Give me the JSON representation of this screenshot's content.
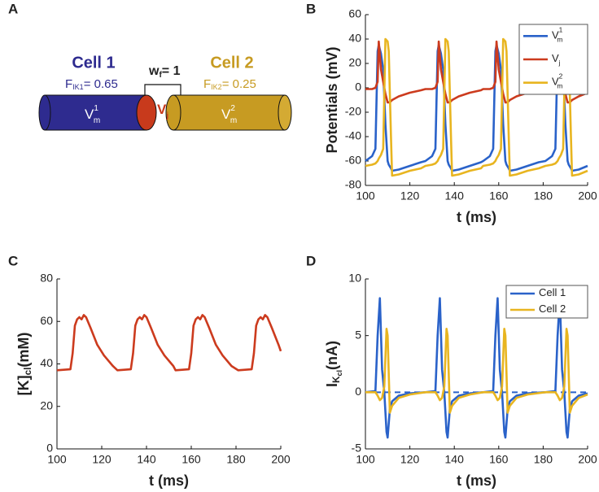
{
  "diagram": {
    "panel": "A",
    "cell1": "Cell 1",
    "f1": "F",
    "f1_sub": "IK1",
    "f1_value": "= 0.65",
    "cell2": "Cell 2",
    "f2": "F",
    "f2_sub": "IK2",
    "f2_value": "= 0.25",
    "wf": "w",
    "wf_sub": "f",
    "wf_value": "= 1",
    "v1": "V",
    "v1_sub": "m",
    "v1_sup": "1",
    "vj": "V",
    "vj_sub": "j",
    "v2": "V",
    "v2_sub": "m",
    "v2_sup": "2"
  },
  "chart_data": [
    {
      "type": "line",
      "panel": "B",
      "xlabel": "t (ms)",
      "ylabel": "Potentials (mV)",
      "legend": "upper right",
      "xlim": [
        100,
        200
      ],
      "xticks": [
        100,
        120,
        140,
        160,
        180,
        200
      ],
      "ylim": [
        -80,
        60
      ],
      "yticks": [
        -80,
        -60,
        -40,
        -20,
        0,
        20,
        40,
        60
      ],
      "x": [
        100,
        103,
        104.5,
        105.5,
        106,
        107,
        108,
        109,
        110,
        110.5,
        111.5,
        112,
        115,
        120,
        125,
        127,
        130,
        131.5,
        132.5,
        133,
        134,
        135,
        136,
        137,
        137.5,
        138.5,
        139,
        142,
        147,
        152,
        153,
        156,
        157.5,
        158.5,
        159,
        160,
        161,
        162,
        163,
        163.5,
        164.5,
        165,
        168,
        173,
        178,
        181,
        184,
        185.5,
        186.5,
        187,
        188,
        189,
        190,
        191,
        191.5,
        192.5,
        193,
        196,
        200
      ],
      "series": [
        {
          "name": "V",
          "name_sub": "m",
          "name_sup": "1",
          "color": "#2a62c9",
          "values": [
            -60,
            -56,
            -50,
            30,
            35,
            28,
            15,
            -30,
            -60,
            -63,
            -66,
            -68,
            -67,
            -64,
            -61,
            -60,
            -56,
            -50,
            30,
            35,
            28,
            15,
            -30,
            -60,
            -63,
            -66,
            -68,
            -67,
            -64,
            -61,
            -60,
            -56,
            -50,
            30,
            35,
            28,
            15,
            -30,
            -60,
            -63,
            -66,
            -68,
            -67,
            -64,
            -61,
            -60,
            -56,
            -50,
            30,
            35,
            28,
            15,
            -30,
            -60,
            -63,
            -66,
            -68,
            -67,
            -64
          ]
        },
        {
          "name": "V",
          "name_sub": "j",
          "color": "#cc3b1e",
          "values": [
            -1,
            -1,
            0,
            5,
            38,
            15,
            5,
            -5,
            -12,
            -12,
            -11,
            -10,
            -7,
            -4,
            -2,
            -1,
            -1,
            0,
            5,
            38,
            15,
            5,
            -5,
            -12,
            -12,
            -11,
            -10,
            -7,
            -4,
            -2,
            -1,
            -1,
            0,
            5,
            38,
            15,
            5,
            -5,
            -12,
            -12,
            -11,
            -10,
            -7,
            -4,
            -2,
            -1,
            -1,
            0,
            5,
            38,
            15,
            5,
            -5,
            -12,
            -12,
            -11,
            -10,
            -7,
            -4
          ]
        },
        {
          "name": "V",
          "name_sub": "m",
          "name_sup": "2",
          "color": "#e8b520",
          "values": [
            -64,
            -63,
            -62,
            -60,
            -58,
            -55,
            -50,
            40,
            38,
            30,
            -40,
            -72,
            -71,
            -68,
            -66,
            -64,
            -63,
            -62,
            -60,
            -58,
            -55,
            -50,
            40,
            38,
            30,
            -40,
            -72,
            -71,
            -68,
            -66,
            -64,
            -63,
            -62,
            -60,
            -58,
            -55,
            -50,
            40,
            38,
            30,
            -40,
            -72,
            -71,
            -68,
            -66,
            -64,
            -63,
            -62,
            -60,
            -58,
            -55,
            -50,
            40,
            38,
            30,
            -40,
            -72,
            -71,
            -68
          ]
        }
      ]
    },
    {
      "type": "line",
      "panel": "C",
      "xlabel": "t (ms)",
      "ylabel": "[K]",
      "ylabel_sub": "cl",
      "ylabel_after": "(mM)",
      "xlim": [
        100,
        200
      ],
      "xticks": [
        100,
        120,
        140,
        160,
        180,
        200
      ],
      "ylim": [
        0,
        80
      ],
      "yticks": [
        0,
        20,
        40,
        60,
        80
      ],
      "x": [
        100,
        106,
        107,
        108,
        109,
        110,
        111,
        112,
        113,
        115,
        118,
        121,
        125,
        127,
        133,
        134,
        135,
        136,
        137,
        138,
        139,
        140,
        142,
        145,
        148,
        152,
        153,
        159,
        160,
        161,
        162,
        163,
        164,
        165,
        166,
        168,
        171,
        174,
        178,
        181,
        187,
        188,
        189,
        190,
        191,
        192,
        193,
        194,
        196,
        199,
        200
      ],
      "series": [
        {
          "color": "#cc3b1e",
          "values": [
            37,
            37.5,
            45,
            58,
            61,
            62,
            61,
            63,
            62,
            57,
            49,
            44,
            39,
            37,
            37.5,
            45,
            58,
            61,
            62,
            61,
            63,
            62,
            57,
            49,
            44,
            39,
            37,
            37.5,
            45,
            58,
            61,
            62,
            61,
            63,
            62,
            57,
            49,
            44,
            39,
            37,
            37.5,
            45,
            58,
            61,
            62,
            61,
            63,
            62,
            57,
            49,
            46
          ]
        }
      ]
    },
    {
      "type": "line",
      "panel": "D",
      "xlabel": "t (ms)",
      "ylabel": "I",
      "ylabel_sub": "K",
      "ylabel_subsub": "cl",
      "ylabel_after": "(nA)",
      "legend": "upper right",
      "reference_line": 0,
      "xlim": [
        100,
        200
      ],
      "xticks": [
        100,
        120,
        140,
        160,
        180,
        200
      ],
      "ylim": [
        -5,
        10
      ],
      "yticks": [
        -5,
        0,
        5,
        10
      ],
      "x": [
        100,
        104.5,
        105.5,
        106.5,
        107.5,
        108.5,
        109.5,
        110,
        111,
        112,
        115,
        120,
        127,
        131.5,
        132.5,
        133.5,
        134.5,
        135.5,
        136.5,
        137,
        138,
        139,
        142,
        147,
        153,
        157.5,
        158.5,
        159.5,
        160.5,
        161.5,
        162.5,
        163,
        164,
        165,
        168,
        173,
        181,
        185.5,
        186.5,
        187.5,
        188.5,
        189.5,
        190.5,
        191,
        192,
        193,
        196,
        200
      ],
      "series": [
        {
          "name": "Cell 1",
          "color": "#2a62c9",
          "values": [
            0,
            0.1,
            5,
            8.3,
            2,
            0,
            -3.5,
            -4,
            -1.5,
            -0.8,
            -0.3,
            -0.1,
            0,
            0.1,
            5,
            8.3,
            2,
            0,
            -3.5,
            -4,
            -1.5,
            -0.8,
            -0.3,
            -0.1,
            0,
            0.1,
            5,
            8.3,
            2,
            0,
            -3.5,
            -4,
            -1.5,
            -0.8,
            -0.3,
            -0.1,
            0,
            0.1,
            5,
            8.3,
            2,
            0,
            -3.5,
            -4,
            -1.5,
            -0.8,
            -0.3,
            -0.1
          ]
        },
        {
          "name": "Cell 2",
          "color": "#e8b520",
          "values": [
            0,
            0,
            -0.3,
            -0.7,
            -0.5,
            0.5,
            5.6,
            5,
            -1.8,
            -1.2,
            -0.5,
            -0.2,
            0,
            0,
            -0.3,
            -0.7,
            -0.5,
            0.5,
            5.6,
            5,
            -1.8,
            -1.2,
            -0.5,
            -0.2,
            0,
            0,
            -0.3,
            -0.7,
            -0.5,
            0.5,
            5.6,
            5,
            -1.8,
            -1.2,
            -0.5,
            -0.2,
            0,
            0,
            -0.3,
            -0.7,
            -0.5,
            0.5,
            5.6,
            5,
            -1.8,
            -1.2,
            -0.5,
            -0.2
          ]
        }
      ]
    }
  ]
}
